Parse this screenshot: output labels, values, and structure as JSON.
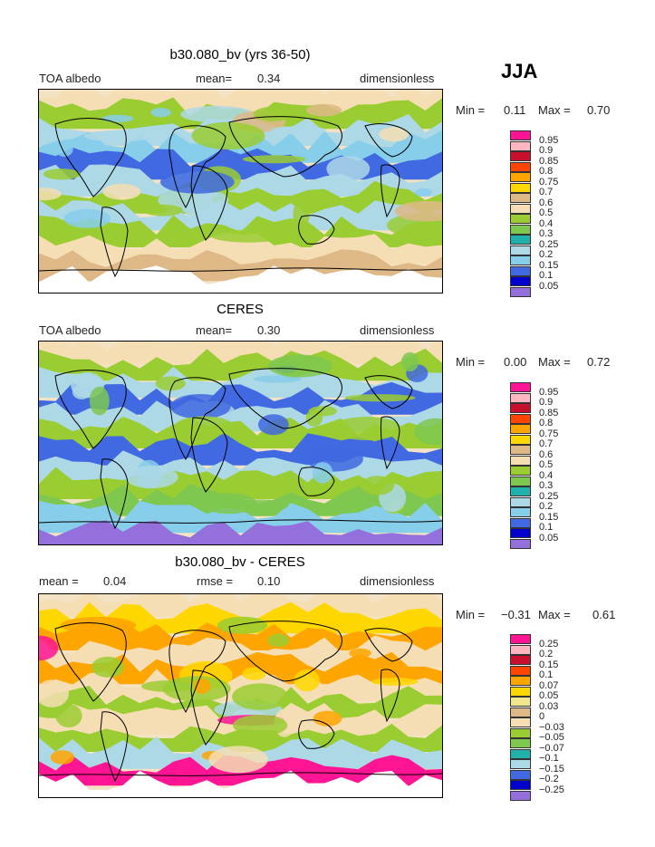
{
  "season": "JJA",
  "panels": [
    {
      "title": "b30.080_bv (yrs 36-50)",
      "left_label": "TOA albedo",
      "mean_label": "mean=",
      "mean_value": "0.34",
      "right_label": "dimensionless",
      "min_label": "Min =",
      "min_value": "0.11",
      "max_label": "Max =",
      "max_value": "0.70",
      "colorbar": {
        "labels": [
          "0.95",
          "0.9",
          "0.85",
          "0.8",
          "0.75",
          "0.7",
          "0.6",
          "0.5",
          "0.4",
          "0.3",
          "0.25",
          "0.2",
          "0.15",
          "0.1",
          "0.05"
        ],
        "colors": [
          "#ff1493",
          "#ffb6c1",
          "#c8102e",
          "#ff4500",
          "#ffa500",
          "#ffd700",
          "#deb887",
          "#f5deb3",
          "#9acd32",
          "#7ec850",
          "#20b2aa",
          "#add8e6",
          "#87ceeb",
          "#4169e1",
          "#0000cd",
          "#9370db"
        ]
      }
    },
    {
      "title": "CERES",
      "left_label": "TOA albedo",
      "mean_label": "mean=",
      "mean_value": "0.30",
      "right_label": "dimensionless",
      "min_label": "Min =",
      "min_value": "0.00",
      "max_label": "Max =",
      "max_value": "0.72",
      "colorbar": {
        "labels": [
          "0.95",
          "0.9",
          "0.85",
          "0.8",
          "0.75",
          "0.7",
          "0.6",
          "0.5",
          "0.4",
          "0.3",
          "0.25",
          "0.2",
          "0.15",
          "0.1",
          "0.05"
        ],
        "colors": [
          "#ff1493",
          "#ffb6c1",
          "#c8102e",
          "#ff4500",
          "#ffa500",
          "#ffd700",
          "#deb887",
          "#f5deb3",
          "#9acd32",
          "#7ec850",
          "#20b2aa",
          "#add8e6",
          "#87ceeb",
          "#4169e1",
          "#0000cd",
          "#9370db"
        ]
      }
    },
    {
      "title": "b30.080_bv - CERES",
      "left_label": "mean =",
      "mean_label": "",
      "mean_value": "0.04",
      "rmse_label": "rmse =",
      "rmse_value": "0.10",
      "right_label": "dimensionless",
      "min_label": "Min =",
      "min_value": "−0.31",
      "max_label": "Max =",
      "max_value": "0.61",
      "colorbar": {
        "labels": [
          "0.25",
          "0.2",
          "0.15",
          "0.1",
          "0.07",
          "0.05",
          "0.03",
          "0",
          "−0.03",
          "−0.05",
          "−0.07",
          "−0.1",
          "−0.15",
          "−0.2",
          "−0.25"
        ],
        "colors": [
          "#ff1493",
          "#ffb6c1",
          "#c8102e",
          "#ff4500",
          "#ffa500",
          "#ffd700",
          "#f0e68c",
          "#deb887",
          "#f5deb3",
          "#9acd32",
          "#7ec850",
          "#20b2aa",
          "#add8e6",
          "#4169e1",
          "#0000cd",
          "#9370db"
        ]
      }
    }
  ],
  "map_colors": {
    "bands_top": [
      "#f5deb3",
      "#9acd32",
      "#add8e6",
      "#87ceeb",
      "#4169e1",
      "#add8e6",
      "#9acd32",
      "#add8e6",
      "#9acd32",
      "#f5deb3",
      "#deb887",
      "#ffffff"
    ],
    "bands_mid": [
      "#f5deb3",
      "#9acd32",
      "#add8e6",
      "#4169e1",
      "#add8e6",
      "#9acd32",
      "#4169e1",
      "#add8e6",
      "#9acd32",
      "#7ec850",
      "#87ceeb",
      "#9370db"
    ],
    "bands_bot": [
      "#f5deb3",
      "#ffd700",
      "#ffa500",
      "#f5deb3",
      "#ffa500",
      "#f5deb3",
      "#9acd32",
      "#f5deb3",
      "#9acd32",
      "#add8e6",
      "#ff1493",
      "#ffffff"
    ]
  }
}
